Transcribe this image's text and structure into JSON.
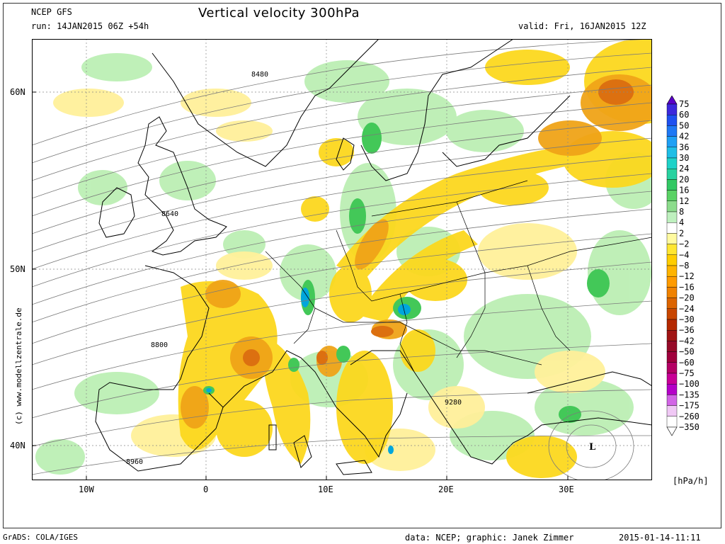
{
  "header": {
    "model": "NCEP GFS",
    "run": "run: 14JAN2015 06Z +54h",
    "title": "Vertical velocity 300hPa",
    "valid": "valid: Fri, 16JAN2015 12Z"
  },
  "map": {
    "lat_labels": [
      "60N",
      "50N",
      "40N"
    ],
    "lon_labels": [
      "10W",
      "0",
      "10E",
      "20E",
      "30E"
    ],
    "contour_labels": [
      "8480",
      "8640",
      "8800",
      "8960",
      "9280"
    ],
    "low_marker": "L",
    "watermark": "(c) www.modellzentrale.de",
    "colors": {
      "ascent_strong": "#00a6dc",
      "ascent_mid": "#43c858",
      "ascent_weak": "#bcefb4",
      "descent_weak": "#fff09a",
      "descent_mid": "#fcd81e",
      "descent_strong": "#f0a418",
      "descent_stronger": "#dc7010",
      "coast": "#000000",
      "contour": "#7a7a7a"
    }
  },
  "legend": {
    "unit": "[hPa/h]",
    "levels": [
      "75",
      "60",
      "50",
      "42",
      "36",
      "30",
      "24",
      "20",
      "16",
      "12",
      "8",
      "4",
      "2",
      "−2",
      "−4",
      "−8",
      "−12",
      "−16",
      "−20",
      "−24",
      "−30",
      "−36",
      "−42",
      "−50",
      "−60",
      "−75",
      "−100",
      "−135",
      "−175",
      "−260",
      "−350"
    ],
    "colors": [
      "#5a00c8",
      "#3c28dc",
      "#1e50f0",
      "#1e78f5",
      "#1ea0f5",
      "#1ebee6",
      "#1ed2c8",
      "#28d2a0",
      "#32c864",
      "#5ad264",
      "#8cdc8c",
      "#bef0be",
      "#ffffff",
      "#fffaa0",
      "#ffe632",
      "#ffcd00",
      "#ffb400",
      "#ff9b00",
      "#f08200",
      "#dc6400",
      "#c84600",
      "#b42800",
      "#a01414",
      "#960a28",
      "#a0003c",
      "#b40064",
      "#c80096",
      "#b400c8",
      "#d264e6",
      "#f0c8f5",
      "#ffffff"
    ]
  },
  "footer": {
    "left": "GrADS: COLA/IGES",
    "credit": "data: NCEP; graphic: Janek Zimmer",
    "timestamp": "2015-01-14-11:11"
  }
}
